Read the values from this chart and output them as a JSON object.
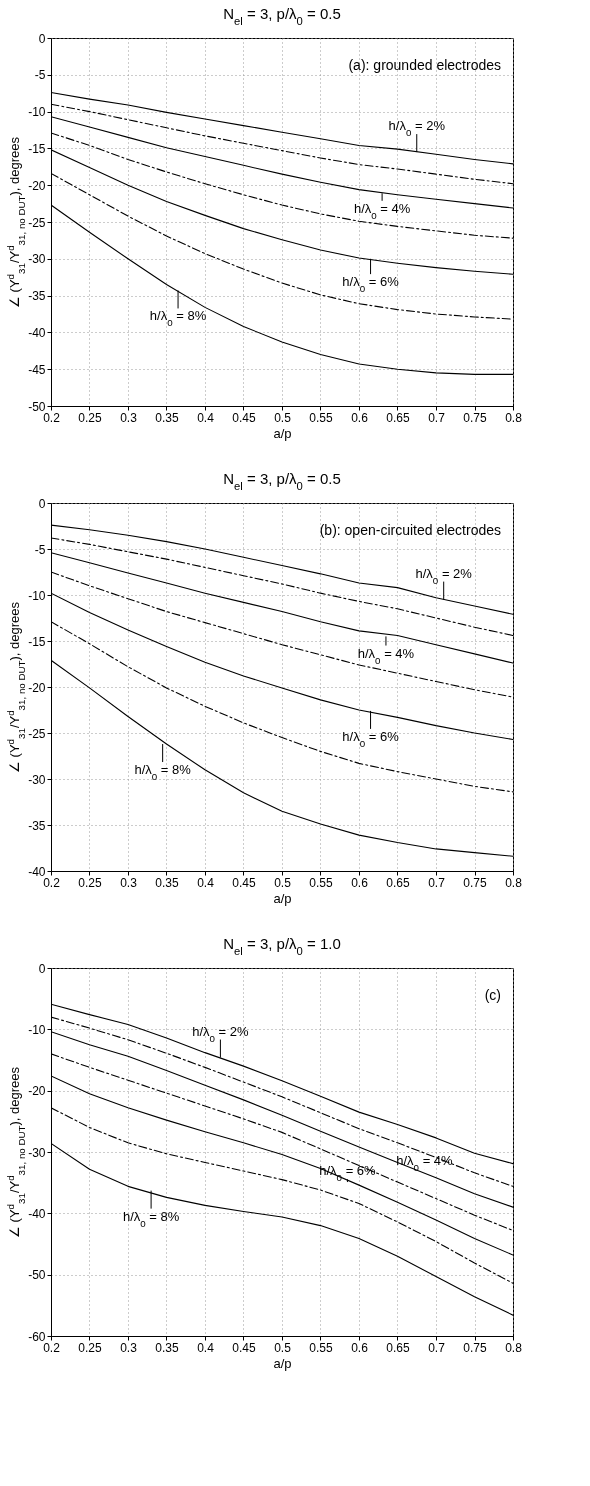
{
  "chart_data": [
    {
      "type": "line",
      "title": "N$_{el}$ = 3, p/λ$_{0}$ = 0.5",
      "xlabel": "a/p",
      "ylabel": "∠ (Y$^{d}$$_{31}$/Y$^{d}$$_{31, no DUT}$), degrees",
      "x": [
        0.2,
        0.25,
        0.3,
        0.35,
        0.4,
        0.45,
        0.5,
        0.55,
        0.6,
        0.65,
        0.7,
        0.75,
        0.8
      ],
      "xlim": [
        0.2,
        0.8
      ],
      "xticks": [
        0.2,
        0.25,
        0.3,
        0.35,
        0.4,
        0.45,
        0.5,
        0.55,
        0.6,
        0.65,
        0.7,
        0.75,
        0.8
      ],
      "ylim": [
        -50,
        0
      ],
      "yticks": [
        -50,
        -45,
        -40,
        -35,
        -30,
        -25,
        -20,
        -15,
        -10,
        -5,
        0
      ],
      "grid": true,
      "legend": false,
      "annotations": [
        "(a): grounded electrodes",
        {
          "text": "h/λ$_{0}$ = 2%",
          "x": 0.675,
          "y": -15.5
        },
        {
          "text": "h/λ$_{0}$ = 4%",
          "x": 0.63,
          "y": -21.1
        },
        {
          "text": "h/λ$_{0}$ = 6%",
          "x": 0.615,
          "y": -30
        },
        {
          "text": "h/λ$_{0}$ = 8%",
          "x": 0.365,
          "y": -34.3
        }
      ],
      "series": [
        {
          "color": "#000000",
          "line_style": "solid",
          "values": [
            -7.4,
            -8.3,
            -9.1,
            -10.1,
            -11,
            -11.9,
            -12.8,
            -13.7,
            -14.6,
            -15.1,
            -15.8,
            -16.5,
            -17.1
          ]
        },
        {
          "color": "#000000",
          "line_style": "dashdot",
          "values": [
            -9,
            -10,
            -11.1,
            -12.2,
            -13.3,
            -14.3,
            -15.3,
            -16.3,
            -17.2,
            -17.8,
            -18.5,
            -19.2,
            -19.8
          ]
        },
        {
          "color": "#000000",
          "line_style": "solid",
          "values": [
            -10.7,
            -12.1,
            -13.5,
            -14.9,
            -16.1,
            -17.3,
            -18.5,
            -19.6,
            -20.6,
            -21.3,
            -21.9,
            -22.5,
            -23.1
          ]
        },
        {
          "color": "#000000",
          "line_style": "dashdot",
          "values": [
            -12.9,
            -14.6,
            -16.5,
            -18.2,
            -19.8,
            -21.3,
            -22.7,
            -23.9,
            -24.9,
            -25.6,
            -26.2,
            -26.8,
            -27.2
          ]
        },
        {
          "color": "#000000",
          "line_style": "solid",
          "values": [
            -15.2,
            -17.6,
            -20,
            -22.2,
            -24.1,
            -25.9,
            -27.4,
            -28.8,
            -29.9,
            -30.6,
            -31.2,
            -31.7,
            -32.1
          ]
        },
        {
          "color": "#000000",
          "line_style": "dashdot",
          "values": [
            -18.4,
            -21.3,
            -24.2,
            -26.9,
            -29.3,
            -31.4,
            -33.3,
            -34.9,
            -36.1,
            -36.9,
            -37.5,
            -37.9,
            -38.2
          ]
        },
        {
          "color": "#000000",
          "line_style": "solid",
          "values": [
            -22.7,
            -26.4,
            -30,
            -33.5,
            -36.6,
            -39.2,
            -41.3,
            -43,
            -44.3,
            -45,
            -45.5,
            -45.7,
            -45.7
          ]
        }
      ]
    },
    {
      "type": "line",
      "title": "N$_{el}$ = 3, p/λ$_{0}$ = 0.5",
      "xlabel": "a/p",
      "ylabel": "∠ (Y$^{d}$$_{31}$/Y$^{d}$$_{31, no DUT}$), degrees",
      "x": [
        0.2,
        0.25,
        0.3,
        0.35,
        0.4,
        0.45,
        0.5,
        0.55,
        0.6,
        0.65,
        0.7,
        0.75,
        0.8
      ],
      "xlim": [
        0.2,
        0.8
      ],
      "xticks": [
        0.2,
        0.25,
        0.3,
        0.35,
        0.4,
        0.45,
        0.5,
        0.55,
        0.6,
        0.65,
        0.7,
        0.75,
        0.8
      ],
      "ylim": [
        -40,
        0
      ],
      "yticks": [
        -40,
        -35,
        -30,
        -25,
        -20,
        -15,
        -10,
        -5,
        0
      ],
      "grid": true,
      "legend": false,
      "annotations": [
        "(b): open-circuited electrodes",
        {
          "text": "h/λ$_{0}$ = 2%",
          "x": 0.71,
          "y": -10.5
        },
        {
          "text": "h/λ$_{0}$ = 4%",
          "x": 0.635,
          "y": -14.5
        },
        {
          "text": "h/λ$_{0}$ = 6%",
          "x": 0.615,
          "y": -22.6
        },
        {
          "text": "h/λ$_{0}$ = 8%",
          "x": 0.345,
          "y": -26.2
        }
      ],
      "series": [
        {
          "color": "#000000",
          "line_style": "solid",
          "values": [
            -2.4,
            -2.9,
            -3.5,
            -4.2,
            -5,
            -5.9,
            -6.8,
            -7.7,
            -8.7,
            -9.2,
            -10.3,
            -11.2,
            -12.1
          ]
        },
        {
          "color": "#000000",
          "line_style": "dashdot",
          "values": [
            -3.8,
            -4.5,
            -5.3,
            -6.1,
            -7,
            -7.9,
            -8.8,
            -9.8,
            -10.7,
            -11.5,
            -12.5,
            -13.5,
            -14.4
          ]
        },
        {
          "color": "#000000",
          "line_style": "solid",
          "values": [
            -5.4,
            -6.5,
            -7.6,
            -8.7,
            -9.8,
            -10.8,
            -11.8,
            -12.9,
            -13.9,
            -14.4,
            -15.4,
            -16.4,
            -17.4
          ]
        },
        {
          "color": "#000000",
          "line_style": "dashdot",
          "values": [
            -7.5,
            -9,
            -10.4,
            -11.8,
            -13,
            -14.2,
            -15.4,
            -16.5,
            -17.6,
            -18.5,
            -19.4,
            -20.3,
            -21.1
          ]
        },
        {
          "color": "#000000",
          "line_style": "solid",
          "values": [
            -9.8,
            -11.9,
            -13.8,
            -15.6,
            -17.3,
            -18.8,
            -20.1,
            -21.4,
            -22.5,
            -23.3,
            -24.2,
            -25,
            -25.7
          ]
        },
        {
          "color": "#000000",
          "line_style": "dashdot",
          "values": [
            -12.9,
            -15.3,
            -17.8,
            -20.1,
            -22.1,
            -23.9,
            -25.5,
            -27,
            -28.3,
            -29.2,
            -30,
            -30.8,
            -31.4
          ]
        },
        {
          "color": "#000000",
          "line_style": "solid",
          "values": [
            -17.1,
            -20.1,
            -23.2,
            -26.2,
            -29,
            -31.5,
            -33.5,
            -34.9,
            -36.1,
            -36.9,
            -37.6,
            -38,
            -38.4
          ]
        }
      ]
    },
    {
      "type": "line",
      "title": "N$_{el}$ = 3, p/λ$_{0}$ = 1.0",
      "xlabel": "a/p",
      "ylabel": "∠ (Y$^{d}$$_{31}$/Y$^{d}$$_{31, no DUT}$), degrees",
      "x": [
        0.2,
        0.25,
        0.3,
        0.35,
        0.4,
        0.45,
        0.5,
        0.55,
        0.6,
        0.65,
        0.7,
        0.75,
        0.8
      ],
      "xlim": [
        0.2,
        0.8
      ],
      "xticks": [
        0.2,
        0.25,
        0.3,
        0.35,
        0.4,
        0.45,
        0.5,
        0.55,
        0.6,
        0.65,
        0.7,
        0.75,
        0.8
      ],
      "ylim": [
        -60,
        0
      ],
      "yticks": [
        -60,
        -50,
        -40,
        -30,
        -20,
        -10,
        0
      ],
      "grid": true,
      "legend": false,
      "annotations": [
        "(c)",
        {
          "text": "h/λ$_{0}$ = 2%",
          "x": 0.42,
          "y": -14.6
        },
        {
          "text": "h/λ$_{0}$ = 4%",
          "x": 0.685,
          "y": -32.8
        },
        {
          "text": "h/λ$_{0}$ = 6%",
          "x": 0.585,
          "y": -34.9
        },
        {
          "text": "h/λ$_{0}$ = 8%",
          "x": 0.33,
          "y": -36.3
        }
      ],
      "series": [
        {
          "color": "#000000",
          "line_style": "solid",
          "values": [
            -5.9,
            -7.6,
            -9.2,
            -11.4,
            -13.8,
            -16,
            -18.4,
            -20.9,
            -23.5,
            -25.5,
            -27.7,
            -30.2,
            -31.9
          ]
        },
        {
          "color": "#000000",
          "line_style": "dashdot",
          "values": [
            -8,
            -9.8,
            -11.7,
            -13.9,
            -16.2,
            -18.6,
            -21,
            -23.6,
            -26.2,
            -28.5,
            -30.9,
            -33.4,
            -35.6
          ]
        },
        {
          "color": "#000000",
          "line_style": "solid",
          "values": [
            -10.4,
            -12.5,
            -14.4,
            -16.7,
            -19.1,
            -21.5,
            -24,
            -26.6,
            -29.2,
            -31.7,
            -34.2,
            -36.8,
            -39
          ]
        },
        {
          "color": "#000000",
          "line_style": "dashdot",
          "values": [
            -14,
            -16.2,
            -18.3,
            -20.4,
            -22.5,
            -24.6,
            -26.8,
            -29.5,
            -32.2,
            -34.9,
            -37.6,
            -40.3,
            -42.8
          ]
        },
        {
          "color": "#000000",
          "line_style": "solid",
          "values": [
            -17.6,
            -20.5,
            -22.8,
            -24.8,
            -26.7,
            -28.5,
            -30.4,
            -32.7,
            -35.4,
            -38.2,
            -41.1,
            -44.1,
            -46.8
          ]
        },
        {
          "color": "#000000",
          "line_style": "dashdot",
          "values": [
            -22.8,
            -26,
            -28.5,
            -30.3,
            -31.7,
            -33.1,
            -34.5,
            -36.2,
            -38.4,
            -41.4,
            -44.6,
            -48.1,
            -51.4
          ]
        },
        {
          "color": "#000000",
          "line_style": "solid",
          "values": [
            -28.6,
            -32.8,
            -35.6,
            -37.4,
            -38.7,
            -39.7,
            -40.6,
            -42,
            -44.1,
            -47,
            -50.3,
            -53.6,
            -56.6
          ]
        }
      ]
    }
  ]
}
